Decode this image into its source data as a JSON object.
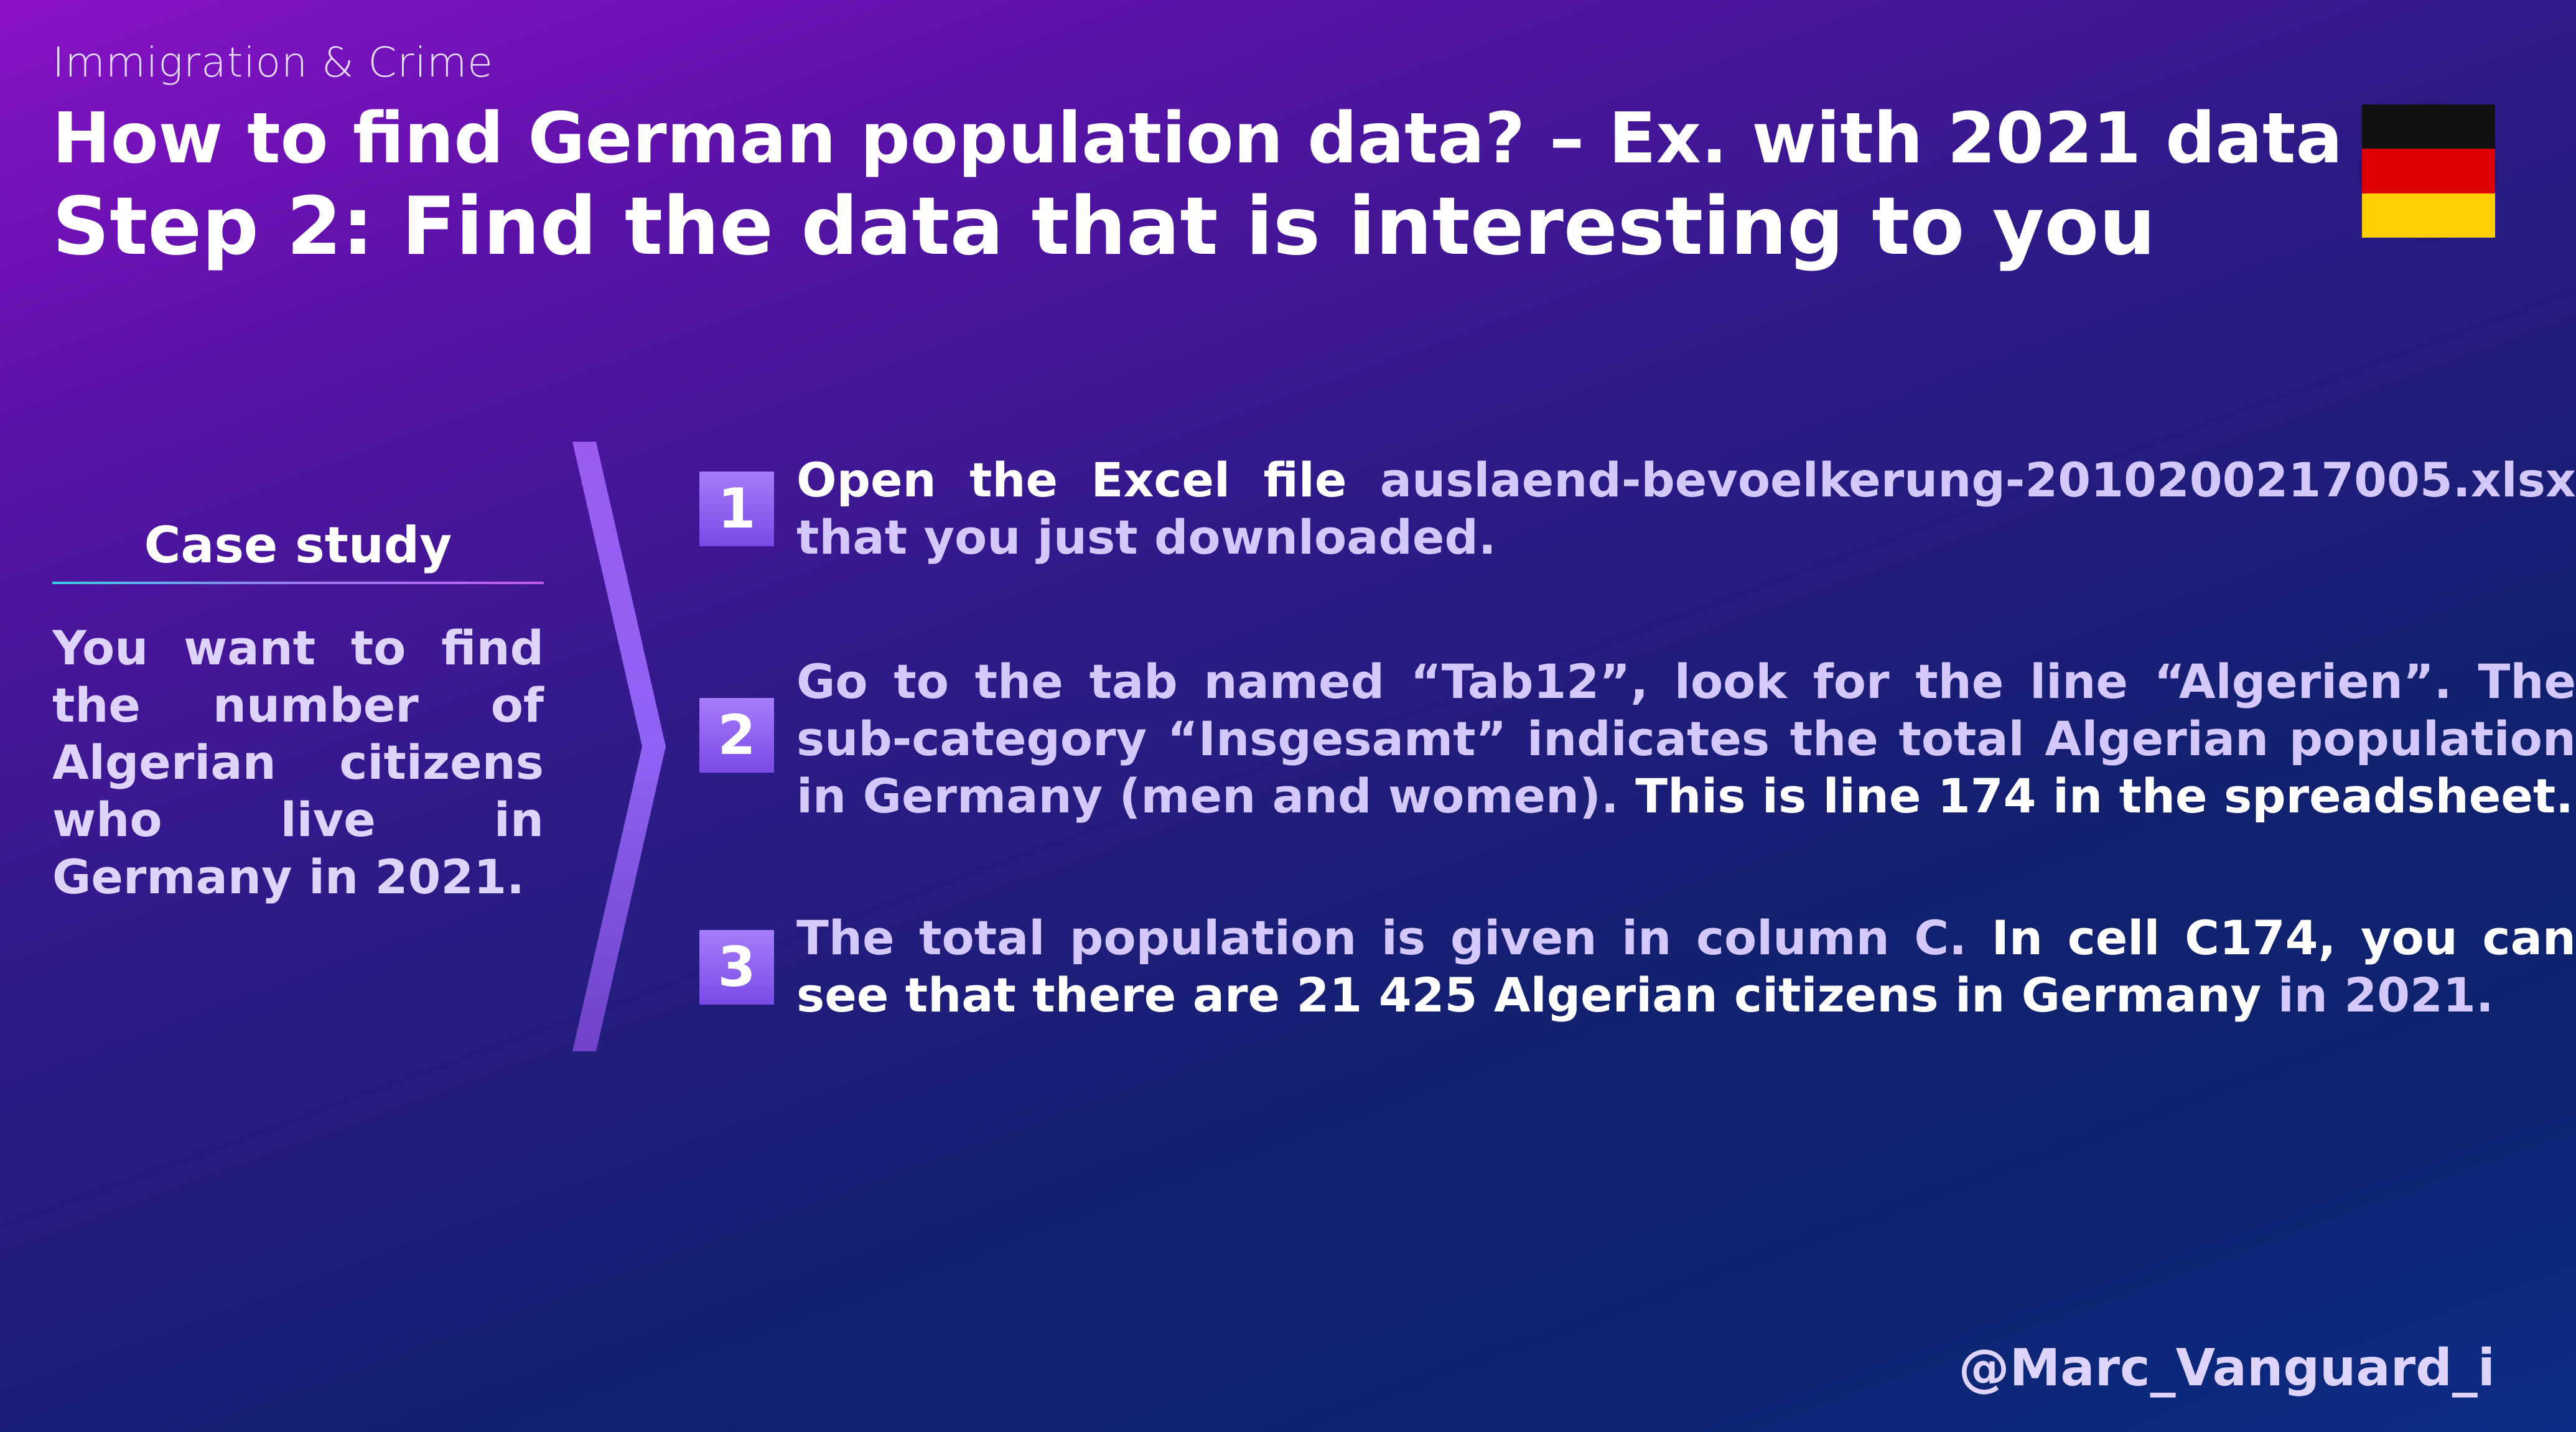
{
  "header": {
    "category": "Immigration & Crime",
    "title": "How to find German population data? – Ex. with 2021 data",
    "subtitle": "Step 2: Find the data that is interesting to you"
  },
  "flag": {
    "icon": "germany-flag-icon",
    "colors": [
      "#111111",
      "#dd0000",
      "#ffce00"
    ]
  },
  "case_study": {
    "title": "Case study",
    "text": "You want to find the number of Algerian citizens who live in Germany in 2021."
  },
  "steps": [
    {
      "number": "1",
      "parts": [
        "Open the Excel file ",
        "auslaend-bevoelkerung-2010200217005.xlsx that you just downloaded."
      ]
    },
    {
      "number": "2",
      "parts": [
        "Go to the tab named “Tab12”, look for the line “Algerien”. The sub-category “Insgesamt” indicates the total Algerian population in Germany (men and women).",
        " This is line 174 in the spreadsheet."
      ]
    },
    {
      "number": "3",
      "parts": [
        "The total population is given in column C.",
        " In cell C174, you can see that there are 21 425 Algerian citizens in Germany",
        " in 2021."
      ]
    }
  ],
  "footer": {
    "handle": "@Marc_Vanguard_i"
  },
  "colors": {
    "accent": "#8f63f0",
    "muted_text": "#d4c7fb"
  }
}
